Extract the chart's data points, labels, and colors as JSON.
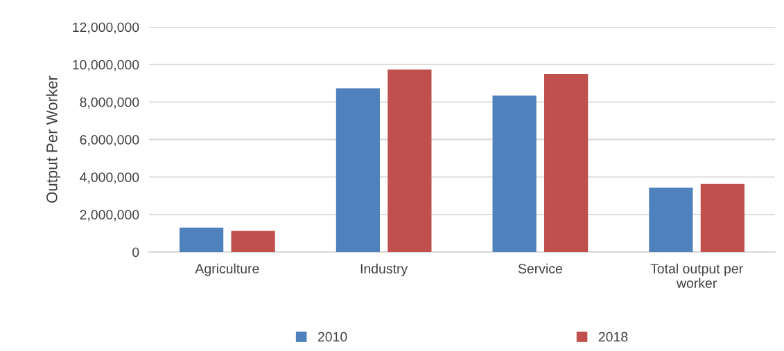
{
  "chart_data": {
    "type": "bar",
    "ylabel": "Output Per Worker",
    "categories": [
      "Agriculture",
      "Industry",
      "Service",
      "Total output per\nworker"
    ],
    "series": [
      {
        "name": "2010",
        "color": "#4f81bd",
        "values": [
          1300000,
          8730000,
          8340000,
          3430000
        ]
      },
      {
        "name": "2018",
        "color": "#c0504d",
        "values": [
          1130000,
          9730000,
          9490000,
          3630000
        ]
      }
    ],
    "ylim": [
      0,
      12000000
    ],
    "yticks": [
      {
        "value": 0,
        "label": "0"
      },
      {
        "value": 2000000,
        "label": "2,000,000"
      },
      {
        "value": 4000000,
        "label": "4,000,000"
      },
      {
        "value": 6000000,
        "label": "6,000,000"
      },
      {
        "value": 8000000,
        "label": "8,000,000"
      },
      {
        "value": 10000000,
        "label": "10,000,000"
      },
      {
        "value": 12000000,
        "label": "12,000,000"
      }
    ],
    "grid": "y",
    "legend": "bottom"
  }
}
